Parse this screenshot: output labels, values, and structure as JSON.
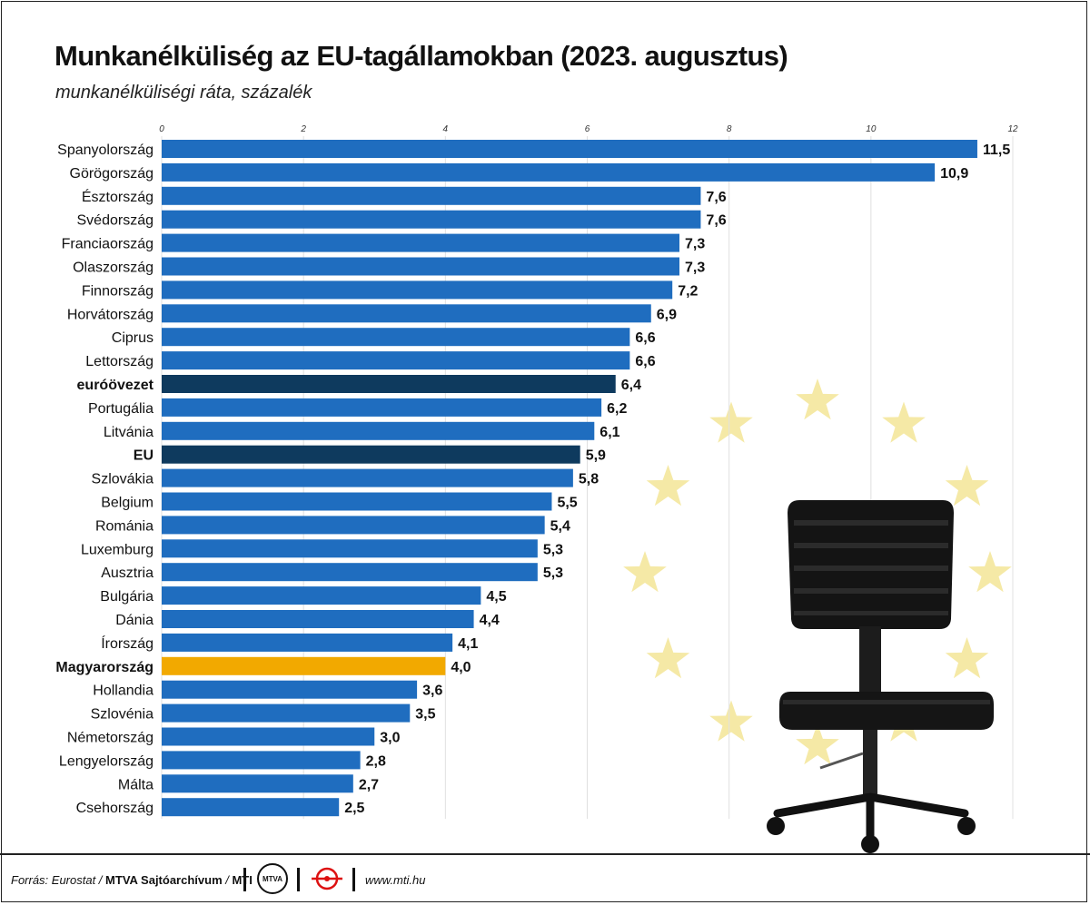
{
  "title": "Munkanélküliség az EU-tagállamokban (2023. augusztus)",
  "subtitle": "munkanélküliségi ráta, százalék",
  "colors": {
    "country": "#1f6dbf",
    "aggregate": "#0e3a5e",
    "hungary": "#f2a900",
    "star": "#f5e9a6",
    "text": "#111111",
    "grid": "#e0e0e0"
  },
  "chart_data": {
    "type": "bar",
    "orientation": "horizontal",
    "xlim": [
      0,
      12
    ],
    "ticks": [
      "0",
      "2",
      "4",
      "6",
      "8",
      "10",
      "12"
    ],
    "grid": true,
    "categories": [
      "Spanyolország",
      "Görögország",
      "Észtország",
      "Svédország",
      "Franciaország",
      "Olaszország",
      "Finnország",
      "Horvátország",
      "Ciprus",
      "Lettország",
      "euróövezet",
      "Portugália",
      "Litvánia",
      "EU",
      "Szlovákia",
      "Belgium",
      "Románia",
      "Luxemburg",
      "Ausztria",
      "Bulgária",
      "Dánia",
      "Írország",
      "Magyarország",
      "Hollandia",
      "Szlovénia",
      "Németország",
      "Lengyelország",
      "Málta",
      "Csehország"
    ],
    "values": [
      11.5,
      10.9,
      7.6,
      7.6,
      7.3,
      7.3,
      7.2,
      6.9,
      6.6,
      6.6,
      6.4,
      6.2,
      6.1,
      5.9,
      5.8,
      5.5,
      5.4,
      5.3,
      5.3,
      4.5,
      4.4,
      4.1,
      4.0,
      3.6,
      3.5,
      3.0,
      2.8,
      2.7,
      2.5
    ],
    "value_labels": [
      "11,5",
      "10,9",
      "7,6",
      "7,6",
      "7,3",
      "7,3",
      "7,2",
      "6,9",
      "6,6",
      "6,6",
      "6,4",
      "6,2",
      "6,1",
      "5,9",
      "5,8",
      "5,5",
      "5,4",
      "5,3",
      "5,3",
      "4,5",
      "4,4",
      "4,1",
      "4,0",
      "3,6",
      "3,5",
      "3,0",
      "2,8",
      "2,7",
      "2,5"
    ],
    "highlight": {
      "aggregate": [
        "euróövezet",
        "EU"
      ],
      "hungary": [
        "Magyarország"
      ]
    }
  },
  "footer": {
    "source_prefix": "Forrás: Eurostat / ",
    "agency": "MTVA Sajtóarchívum",
    "slash": " / ",
    "mti": "MTI",
    "mtva_logo_text": "MTVA",
    "url": "www.mti.hu"
  }
}
